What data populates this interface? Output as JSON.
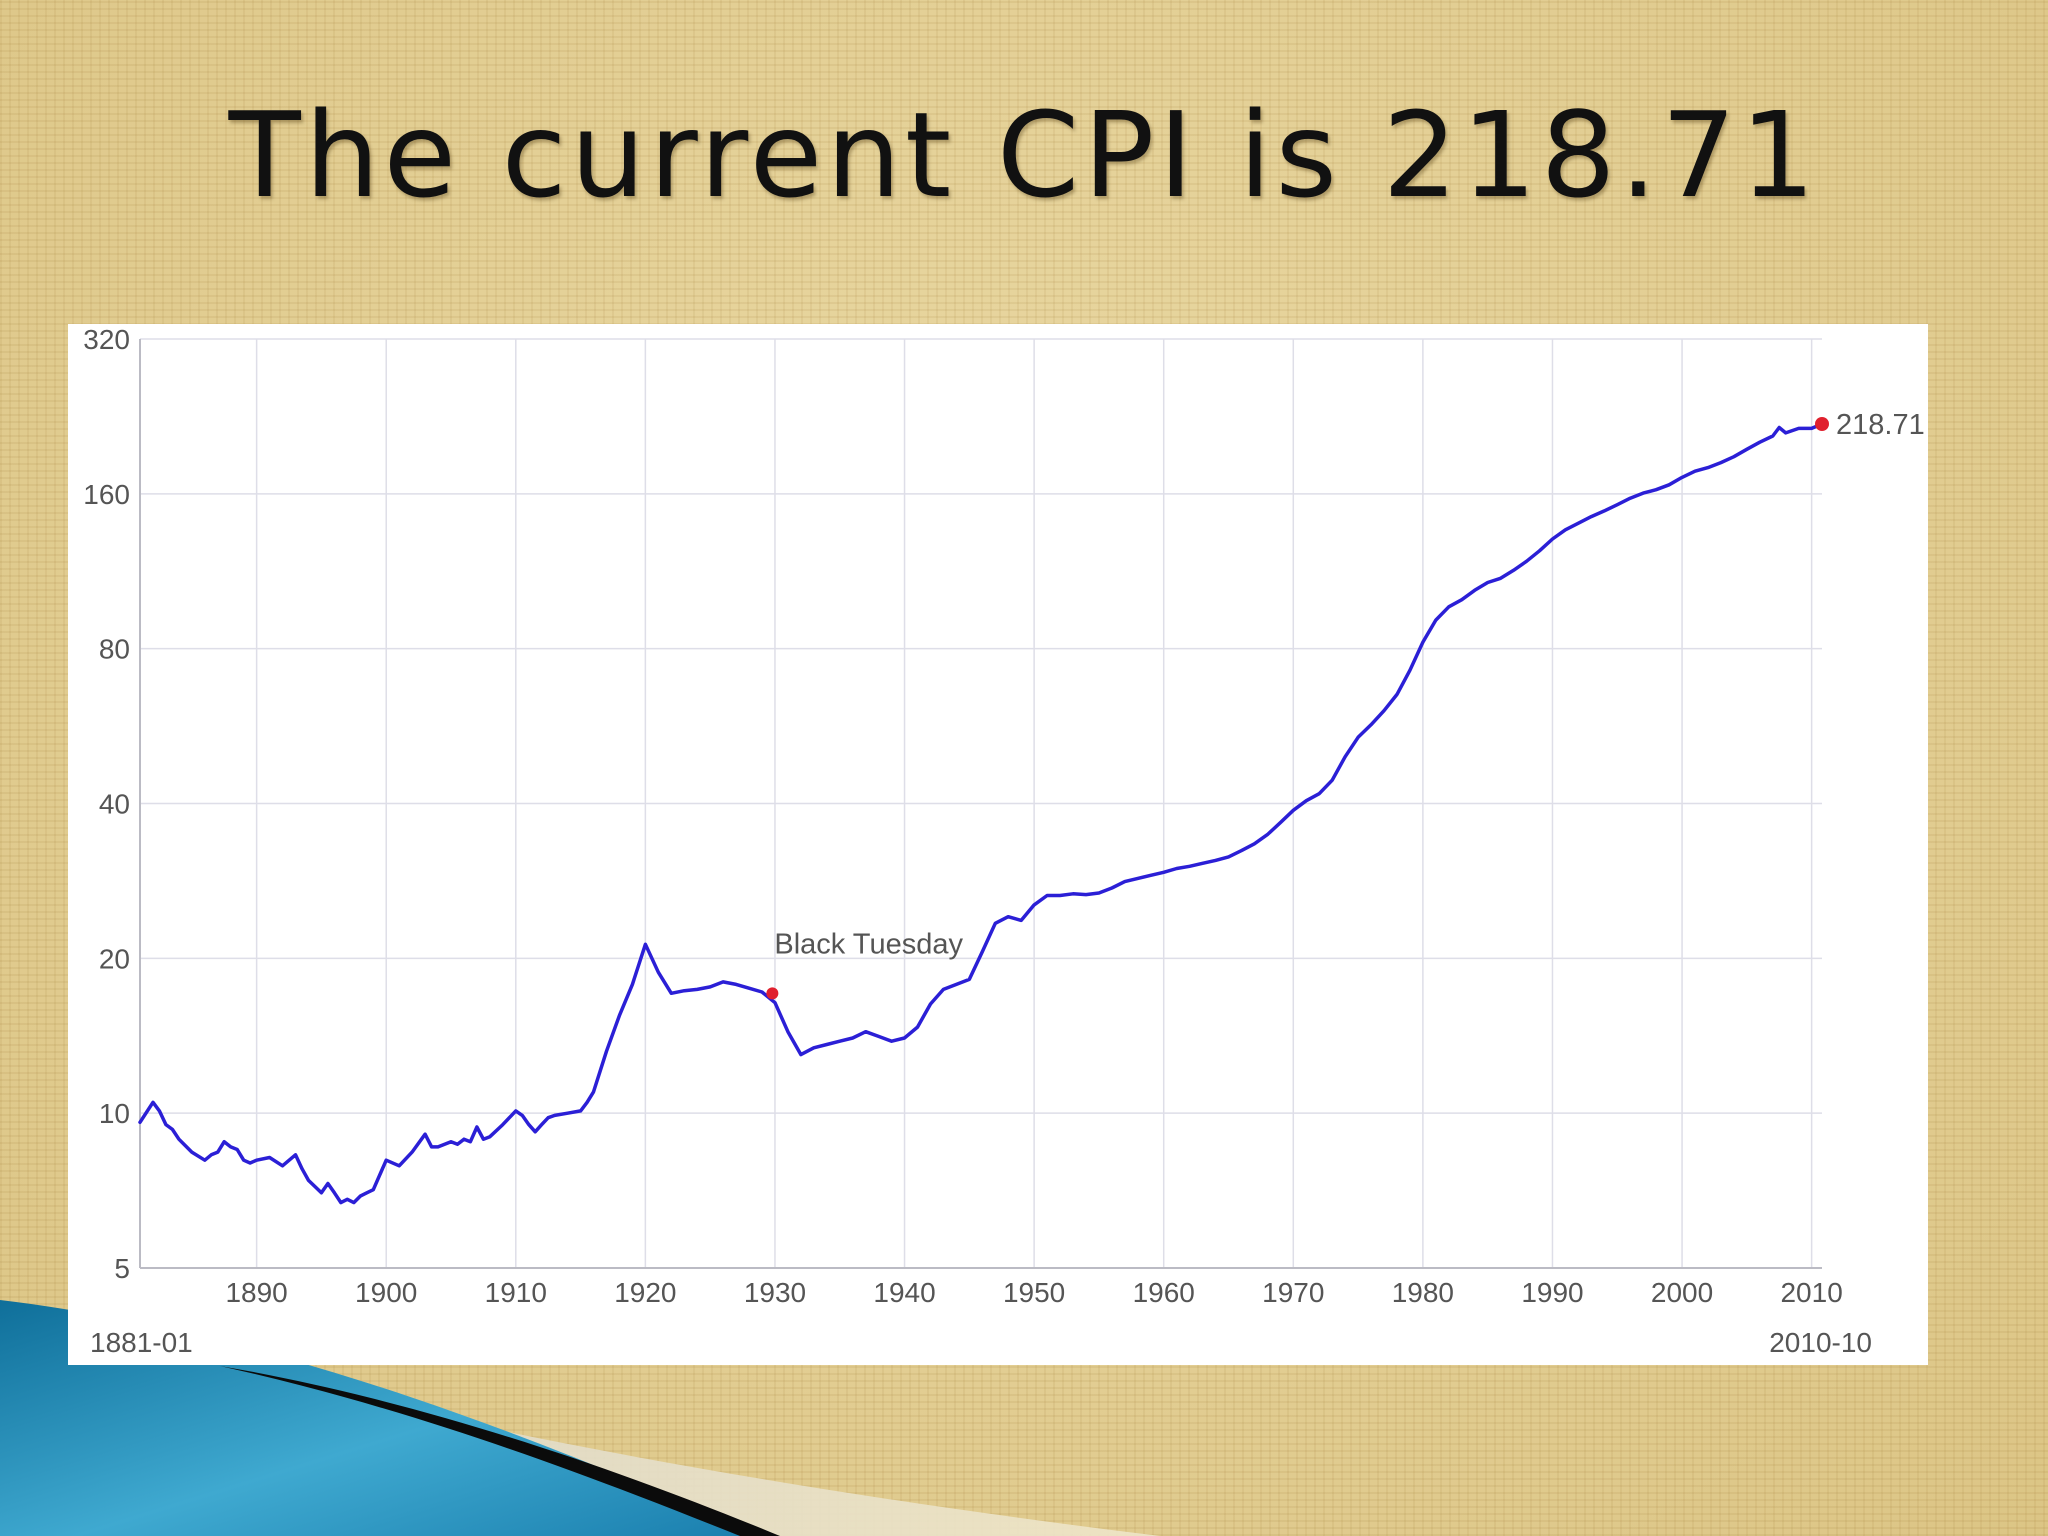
{
  "slide": {
    "title": "The current CPI is 218.71"
  },
  "colors": {
    "line": "#2b1fd6",
    "marker": "#e0202e",
    "grid": "#dedee8"
  },
  "chart_data": {
    "type": "line",
    "title": "",
    "xlabel": "",
    "ylabel": "",
    "y_scale": "log",
    "ylim": [
      5,
      320
    ],
    "xlim": [
      1881,
      2010.8
    ],
    "y_ticks": [
      5,
      10,
      20,
      40,
      80,
      160,
      320
    ],
    "x_ticks": [
      1890,
      1900,
      1910,
      1920,
      1930,
      1940,
      1950,
      1960,
      1970,
      1980,
      1990,
      2000,
      2010
    ],
    "range_start_label": "1881-01",
    "range_end_label": "2010-10",
    "grid": true,
    "series": [
      {
        "x": [
          1881,
          1882,
          1882.5,
          1883,
          1883.5,
          1884,
          1885,
          1886,
          1886.5,
          1887,
          1887.5,
          1888,
          1888.5,
          1889,
          1889.5,
          1890,
          1891,
          1892,
          1893,
          1893.5,
          1894,
          1894.5,
          1895,
          1895.5,
          1896,
          1896.5,
          1897,
          1897.5,
          1898,
          1898.5,
          1899,
          1900,
          1901,
          1902,
          1903,
          1903.5,
          1904,
          1905,
          1905.5,
          1906,
          1906.5,
          1907,
          1907.5,
          1908,
          1909,
          1910,
          1910.5,
          1911,
          1911.5,
          1912,
          1912.5,
          1913,
          1914,
          1915,
          1915.5,
          1916,
          1917,
          1918,
          1919,
          1920,
          1921,
          1922,
          1923,
          1924,
          1925,
          1926,
          1927,
          1928,
          1929,
          1930,
          1931,
          1932,
          1933,
          1934,
          1935,
          1936,
          1937,
          1938,
          1939,
          1940,
          1941,
          1942,
          1943,
          1944,
          1945,
          1946,
          1947,
          1948,
          1949,
          1950,
          1951,
          1952,
          1953,
          1954,
          1955,
          1956,
          1957,
          1958,
          1959,
          1960,
          1961,
          1962,
          1963,
          1964,
          1965,
          1966,
          1967,
          1968,
          1969,
          1970,
          1971,
          1972,
          1973,
          1974,
          1975,
          1976,
          1977,
          1978,
          1979,
          1980,
          1981,
          1982,
          1983,
          1984,
          1985,
          1986,
          1987,
          1988,
          1989,
          1990,
          1991,
          1992,
          1993,
          1994,
          1995,
          1996,
          1997,
          1998,
          1999,
          2000,
          2001,
          2002,
          2003,
          2004,
          2005,
          2006,
          2007,
          2007.5,
          2008,
          2009,
          2010,
          2010.8
        ],
        "y": [
          9.6,
          10.5,
          10.1,
          9.5,
          9.3,
          8.9,
          8.4,
          8.1,
          8.3,
          8.4,
          8.8,
          8.6,
          8.5,
          8.1,
          8.0,
          8.1,
          8.2,
          7.9,
          8.3,
          7.8,
          7.4,
          7.2,
          7.0,
          7.3,
          7.0,
          6.7,
          6.8,
          6.7,
          6.9,
          7.0,
          7.1,
          8.1,
          7.9,
          8.4,
          9.1,
          8.6,
          8.6,
          8.8,
          8.7,
          8.9,
          8.8,
          9.4,
          8.9,
          9.0,
          9.5,
          10.1,
          9.9,
          9.5,
          9.2,
          9.5,
          9.8,
          9.9,
          10.0,
          10.1,
          10.5,
          11.0,
          13.2,
          15.5,
          17.8,
          21.3,
          18.8,
          17.1,
          17.3,
          17.4,
          17.6,
          18.0,
          17.8,
          17.5,
          17.2,
          16.4,
          14.4,
          13.0,
          13.4,
          13.6,
          13.8,
          14.0,
          14.4,
          14.1,
          13.8,
          14.0,
          14.7,
          16.3,
          17.4,
          17.8,
          18.2,
          20.6,
          23.4,
          24.1,
          23.7,
          25.4,
          26.5,
          26.5,
          26.7,
          26.6,
          26.8,
          27.4,
          28.2,
          28.6,
          29.0,
          29.4,
          29.9,
          30.2,
          30.6,
          31.0,
          31.5,
          32.4,
          33.4,
          34.8,
          36.7,
          38.8,
          40.5,
          41.8,
          44.4,
          49.3,
          53.8,
          56.9,
          60.6,
          65.2,
          72.6,
          82.4,
          90.9,
          96.5,
          99.6,
          103.9,
          107.6,
          109.6,
          113.6,
          118.3,
          124.0,
          130.7,
          136.2,
          140.3,
          144.5,
          148.2,
          152.4,
          156.9,
          160.5,
          163.0,
          166.6,
          172.2,
          177.1,
          179.9,
          184.0,
          188.9,
          195.3,
          201.6,
          207.3,
          215.3,
          210.2,
          214.5,
          214.5,
          218.71
        ]
      }
    ],
    "annotations": [
      {
        "x": 1929.8,
        "y": 17.1,
        "text": "Black Tuesday"
      }
    ],
    "current_point": {
      "x": 2010.8,
      "y": 218.71,
      "label": "218.71"
    }
  }
}
